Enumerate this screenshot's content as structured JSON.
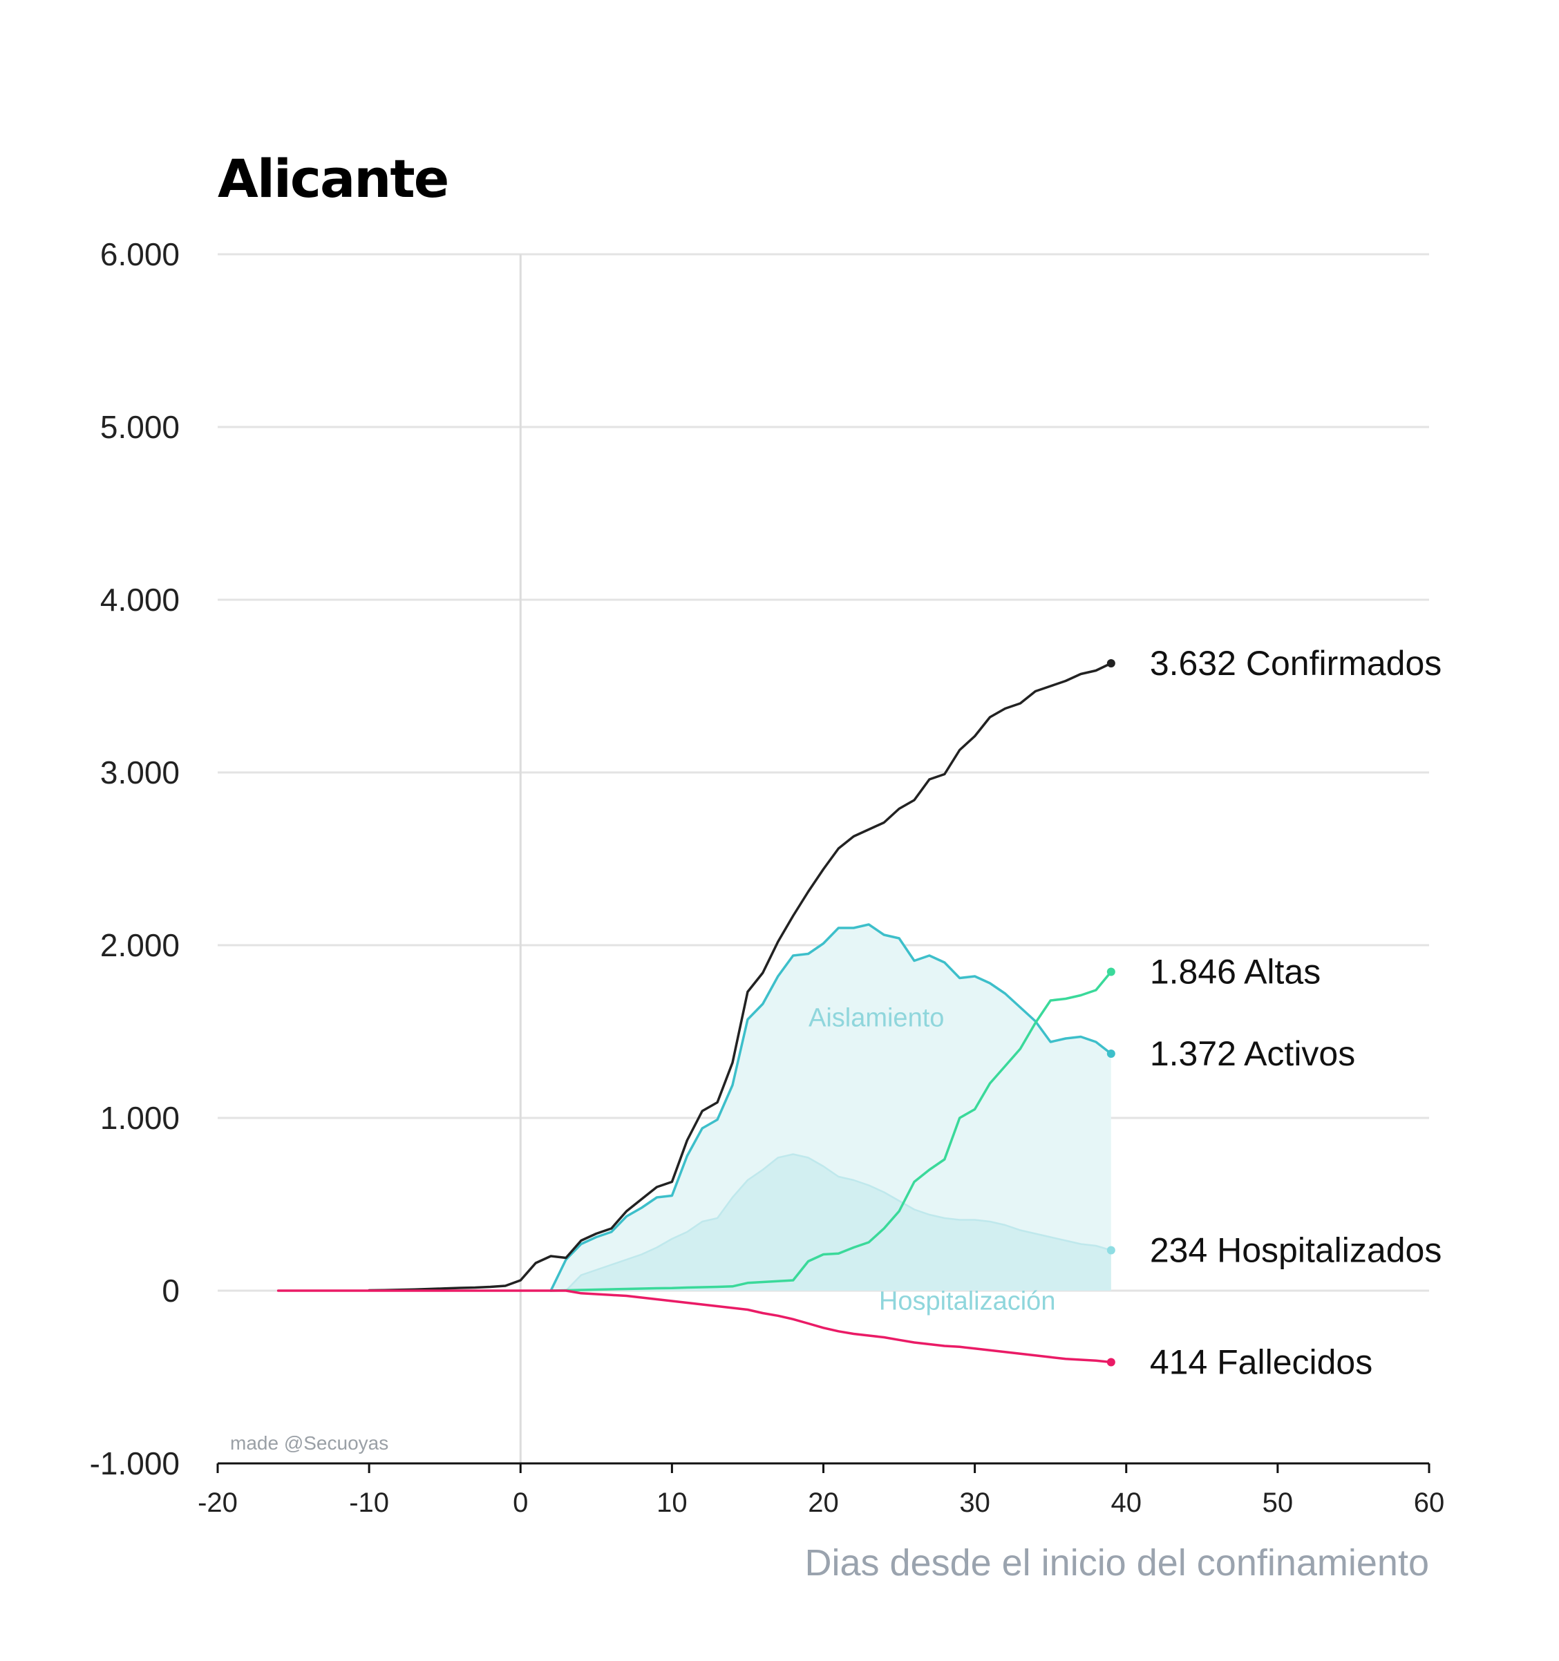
{
  "title": "Alicante",
  "watermark": "made @Secuoyas",
  "chart_data": {
    "type": "line",
    "title": "Alicante",
    "xlabel": "Dias desde el inicio del confinamiento",
    "ylabel": "",
    "xlim": [
      -20,
      60
    ],
    "ylim": [
      -1000,
      6000
    ],
    "xticks": [
      -20,
      -10,
      0,
      10,
      20,
      30,
      40,
      50,
      60
    ],
    "xtick_labels": [
      "-20",
      "-10",
      "0",
      "10",
      "20",
      "30",
      "40",
      "50",
      "60"
    ],
    "yticks": [
      -1000,
      0,
      1000,
      2000,
      3000,
      4000,
      5000,
      6000
    ],
    "ytick_labels": [
      "-1.000",
      "0",
      "1.000",
      "2.000",
      "3.000",
      "4.000",
      "5.000",
      "6.000"
    ],
    "grid": true,
    "vertical_marker_x": 0,
    "area_labels": [
      "Aislamiento",
      "Hospitalización"
    ],
    "series": [
      {
        "name": "Confirmados",
        "color": "#222222",
        "end_label": "3.632 Confirmados",
        "x": [
          -10,
          -9,
          -8,
          -7,
          -6,
          -5,
          -4,
          -3,
          -2,
          -1,
          0,
          1,
          2,
          3,
          4,
          5,
          6,
          7,
          8,
          9,
          10,
          11,
          12,
          13,
          14,
          15,
          16,
          17,
          18,
          19,
          20,
          21,
          22,
          23,
          24,
          25,
          26,
          27,
          28,
          29,
          30,
          31,
          32,
          33,
          34,
          35,
          36,
          37,
          38,
          39
        ],
        "values": [
          2,
          3,
          5,
          7,
          10,
          13,
          16,
          18,
          22,
          28,
          60,
          160,
          200,
          190,
          290,
          330,
          360,
          460,
          530,
          600,
          630,
          870,
          1040,
          1090,
          1320,
          1730,
          1840,
          2020,
          2170,
          2310,
          2440,
          2560,
          2630,
          2670,
          2710,
          2790,
          2840,
          2960,
          2990,
          3130,
          3210,
          3320,
          3370,
          3400,
          3470,
          3500,
          3530,
          3570,
          3590,
          3632
        ]
      },
      {
        "name": "Activos",
        "color": "#3dbfca",
        "end_label": "1.372 Activos",
        "fill": "#e6f6f7",
        "x": [
          2,
          3,
          4,
          5,
          6,
          7,
          8,
          9,
          10,
          11,
          12,
          13,
          14,
          15,
          16,
          17,
          18,
          19,
          20,
          21,
          22,
          23,
          24,
          25,
          26,
          27,
          28,
          29,
          30,
          31,
          32,
          33,
          34,
          35,
          36,
          37,
          38,
          39
        ],
        "values": [
          0,
          180,
          270,
          310,
          340,
          430,
          480,
          540,
          550,
          780,
          940,
          990,
          1190,
          1570,
          1660,
          1820,
          1940,
          1950,
          2010,
          2100,
          2100,
          2120,
          2060,
          2040,
          1910,
          1940,
          1900,
          1810,
          1820,
          1780,
          1720,
          1640,
          1560,
          1440,
          1460,
          1470,
          1440,
          1372
        ]
      },
      {
        "name": "Hospitalizados",
        "color": "#bfe8ec",
        "end_label": "234 Hospitalizados",
        "fill": "#d2eff1",
        "x": [
          3,
          4,
          5,
          6,
          7,
          8,
          9,
          10,
          11,
          12,
          13,
          14,
          15,
          16,
          17,
          18,
          19,
          20,
          21,
          22,
          23,
          24,
          25,
          26,
          27,
          28,
          29,
          30,
          31,
          32,
          33,
          34,
          35,
          36,
          37,
          38,
          39
        ],
        "values": [
          0,
          90,
          120,
          150,
          180,
          210,
          250,
          300,
          340,
          400,
          420,
          540,
          640,
          700,
          770,
          790,
          770,
          720,
          660,
          640,
          610,
          570,
          520,
          470,
          440,
          420,
          410,
          410,
          400,
          380,
          350,
          330,
          310,
          290,
          270,
          260,
          234
        ]
      },
      {
        "name": "Altas",
        "color": "#3ad99a",
        "end_label": "1.846 Altas",
        "x": [
          2,
          3,
          4,
          5,
          6,
          7,
          8,
          9,
          10,
          11,
          12,
          13,
          14,
          15,
          16,
          17,
          18,
          19,
          20,
          21,
          22,
          23,
          24,
          25,
          26,
          27,
          28,
          29,
          30,
          31,
          32,
          33,
          34,
          35,
          36,
          37,
          38,
          39
        ],
        "values": [
          0,
          2,
          4,
          6,
          8,
          10,
          12,
          14,
          15,
          18,
          20,
          22,
          25,
          45,
          50,
          55,
          60,
          170,
          210,
          215,
          250,
          280,
          360,
          460,
          630,
          700,
          760,
          1000,
          1050,
          1200,
          1300,
          1400,
          1550,
          1680,
          1690,
          1710,
          1740,
          1846
        ]
      },
      {
        "name": "Fallecidos",
        "color": "#ea1b66",
        "end_label": "414 Fallecidos",
        "x": [
          -16,
          -10,
          -5,
          0,
          3,
          4,
          5,
          6,
          7,
          8,
          9,
          10,
          11,
          12,
          13,
          14,
          15,
          16,
          17,
          18,
          19,
          20,
          21,
          22,
          23,
          24,
          25,
          26,
          27,
          28,
          29,
          30,
          31,
          32,
          33,
          34,
          35,
          36,
          37,
          38,
          39
        ],
        "values": [
          0,
          0,
          0,
          0,
          0,
          -15,
          -20,
          -25,
          -30,
          -40,
          -50,
          -60,
          -70,
          -80,
          -90,
          -100,
          -110,
          -130,
          -145,
          -165,
          -190,
          -215,
          -235,
          -250,
          -260,
          -270,
          -285,
          -300,
          -310,
          -320,
          -325,
          -335,
          -345,
          -355,
          -365,
          -375,
          -385,
          -395,
          -400,
          -405,
          -414
        ]
      }
    ]
  }
}
